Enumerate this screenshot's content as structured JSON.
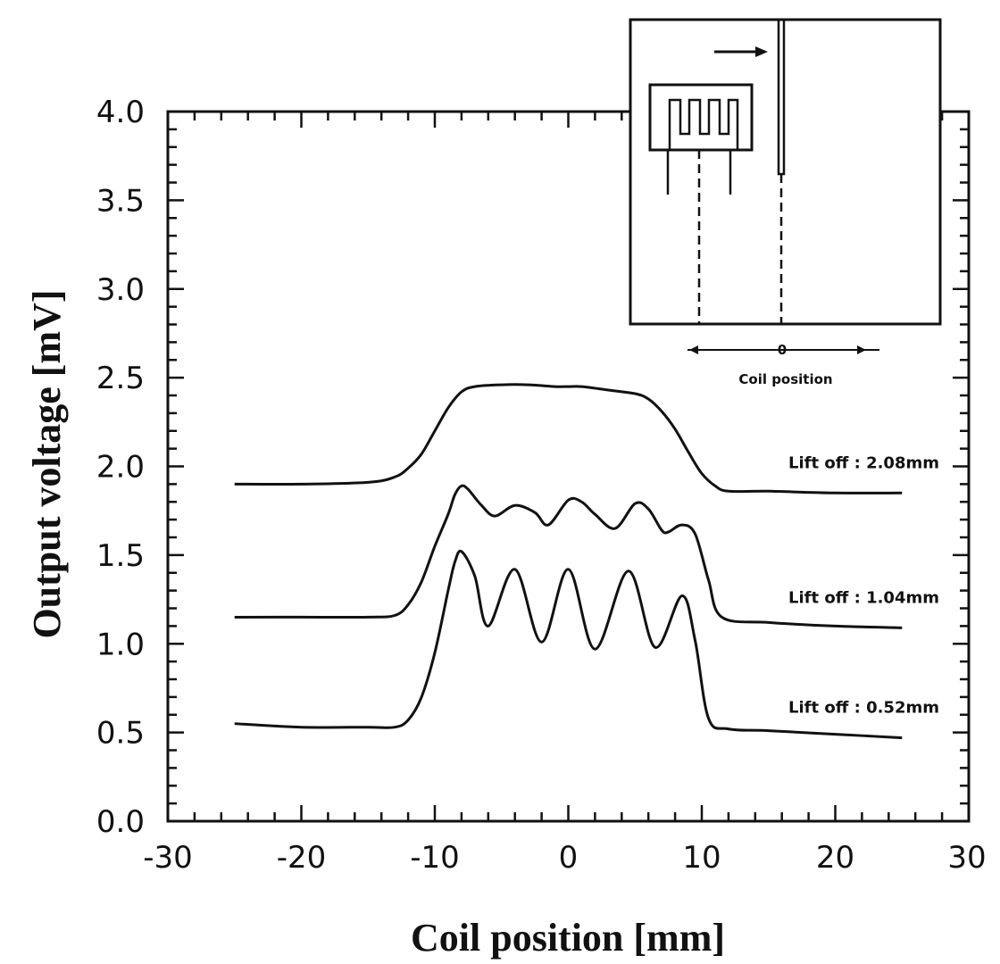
{
  "chart_data": {
    "type": "line",
    "title": "",
    "xlabel": "Coil position   [mm]",
    "ylabel": "Output voltage   [mV]",
    "xlim": [
      -30,
      30
    ],
    "ylim": [
      0.0,
      4.0
    ],
    "x_ticks": [
      {
        "value": -30,
        "label": "-30"
      },
      {
        "value": -20,
        "label": "-20"
      },
      {
        "value": -10,
        "label": "-10"
      },
      {
        "value": 0,
        "label": "0"
      },
      {
        "value": 10,
        "label": "10"
      },
      {
        "value": 20,
        "label": "20"
      },
      {
        "value": 30,
        "label": "30"
      }
    ],
    "y_ticks": [
      {
        "value": 0.0,
        "label": "0.0"
      },
      {
        "value": 0.5,
        "label": "0.5"
      },
      {
        "value": 1.0,
        "label": "1.0"
      },
      {
        "value": 1.5,
        "label": "1.5"
      },
      {
        "value": 2.0,
        "label": "2.0"
      },
      {
        "value": 2.5,
        "label": "2.5"
      },
      {
        "value": 3.0,
        "label": "3.0"
      },
      {
        "value": 3.5,
        "label": "3.5"
      },
      {
        "value": 4.0,
        "label": "4.0"
      }
    ],
    "grid": false,
    "series": [
      {
        "name": "Lift off : 2.08mm",
        "x": [
          -25,
          -20,
          -15,
          -13,
          -12,
          -11,
          -10,
          -9,
          -8,
          -7,
          -5,
          -3,
          -1,
          0,
          1,
          3,
          5,
          6,
          7,
          8,
          9,
          10,
          11,
          12,
          15,
          20,
          25
        ],
        "y": [
          1.9,
          1.9,
          1.91,
          1.94,
          1.99,
          2.07,
          2.2,
          2.33,
          2.42,
          2.45,
          2.46,
          2.46,
          2.45,
          2.45,
          2.45,
          2.43,
          2.41,
          2.38,
          2.31,
          2.21,
          2.08,
          1.96,
          1.89,
          1.86,
          1.86,
          1.85,
          1.85
        ]
      },
      {
        "name": "Lift off : 1.04mm",
        "x": [
          -25,
          -20,
          -15,
          -13,
          -12,
          -11,
          -10,
          -9,
          -8.5,
          -8,
          -7.5,
          -6.5,
          -5.5,
          -4,
          -2.5,
          -1.5,
          0,
          1,
          2,
          3.5,
          5,
          6,
          7,
          7.5,
          8.5,
          9.5,
          10.5,
          11.5,
          15,
          20,
          25
        ],
        "y": [
          1.15,
          1.15,
          1.15,
          1.16,
          1.22,
          1.35,
          1.55,
          1.73,
          1.84,
          1.89,
          1.87,
          1.78,
          1.72,
          1.78,
          1.74,
          1.67,
          1.81,
          1.8,
          1.73,
          1.65,
          1.79,
          1.76,
          1.64,
          1.63,
          1.67,
          1.62,
          1.36,
          1.15,
          1.12,
          1.1,
          1.09
        ]
      },
      {
        "name": "Lift off : 0.52mm",
        "x": [
          -25,
          -20,
          -15,
          -13,
          -12,
          -11,
          -10,
          -9,
          -8.5,
          -8,
          -7,
          -6,
          -4,
          -2,
          0,
          2,
          4.5,
          6.5,
          8.5,
          9.5,
          10.5,
          12,
          15,
          20,
          25
        ],
        "y": [
          0.55,
          0.53,
          0.53,
          0.53,
          0.57,
          0.7,
          0.95,
          1.3,
          1.46,
          1.52,
          1.38,
          1.1,
          1.42,
          1.01,
          1.42,
          0.97,
          1.41,
          0.98,
          1.27,
          1.02,
          0.58,
          0.52,
          0.51,
          0.49,
          0.47
        ]
      }
    ],
    "annotations": [
      {
        "text": "Lift off : 2.08mm",
        "series": 0
      },
      {
        "text": "Lift off : 1.04mm",
        "series": 1
      },
      {
        "text": "Lift off : 0.52mm",
        "series": 2
      }
    ],
    "inset": {
      "description_label": "Coil position",
      "zero_label": "0"
    }
  }
}
